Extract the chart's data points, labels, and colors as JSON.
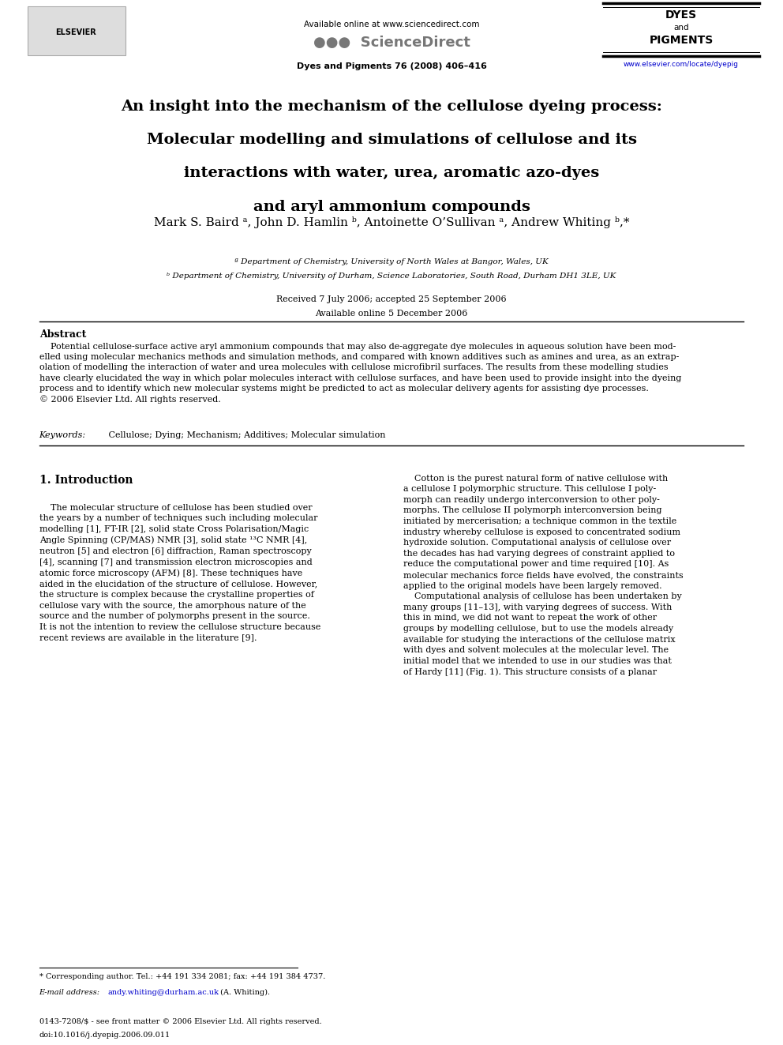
{
  "bg_color": "#ffffff",
  "header_available_online": "Available online at www.sciencedirect.com",
  "header_journal": "Dyes and Pigments 76 (2008) 406–416",
  "title_line1": "An insight into the mechanism of the cellulose dyeing process:",
  "title_line2": "Molecular modelling and simulations of cellulose and its",
  "title_line3": "interactions with water, urea, aromatic azo-dyes",
  "title_line4": "and aryl ammonium compounds",
  "author_line": "Mark S. Baird ᵃ, John D. Hamlin ᵇ, Antoinette O’Sullivan ᵃ, Andrew Whiting ᵇ,*",
  "affil_a": "ª Department of Chemistry, University of North Wales at Bangor, Wales, UK",
  "affil_b": "ᵇ Department of Chemistry, University of Durham, Science Laboratories, South Road, Durham DH1 3LE, UK",
  "received": "Received 7 July 2006; accepted 25 September 2006",
  "available": "Available online 5 December 2006",
  "abstract_title": "Abstract",
  "abstract_text": "    Potential cellulose-surface active aryl ammonium compounds that may also de-aggregate dye molecules in aqueous solution have been mod-\nelled using molecular mechanics methods and simulation methods, and compared with known additives such as amines and urea, as an extrap-\nolation of modelling the interaction of water and urea molecules with cellulose microfibril surfaces. The results from these modelling studies\nhave clearly elucidated the way in which polar molecules interact with cellulose surfaces, and have been used to provide insight into the dyeing\nprocess and to identify which new molecular systems might be predicted to act as molecular delivery agents for assisting dye processes.\n© 2006 Elsevier Ltd. All rights reserved.",
  "keywords_italic": "Keywords:",
  "keywords_text": " Cellulose; Dying; Mechanism; Additives; Molecular simulation",
  "section1_title": "1. Introduction",
  "intro_left": "    The molecular structure of cellulose has been studied over\nthe years by a number of techniques such including molecular\nmodelling [1], FT-IR [2], solid state Cross Polarisation/Magic\nAngle Spinning (CP/MAS) NMR [3], solid state ¹³C NMR [4],\nneutron [5] and electron [6] diffraction, Raman spectroscopy\n[4], scanning [7] and transmission electron microscopies and\natomic force microscopy (AFM) [8]. These techniques have\naided in the elucidation of the structure of cellulose. However,\nthe structure is complex because the crystalline properties of\ncellulose vary with the source, the amorphous nature of the\nsource and the number of polymorphs present in the source.\nIt is not the intention to review the cellulose structure because\nrecent reviews are available in the literature [9].",
  "intro_right": "    Cotton is the purest natural form of native cellulose with\na cellulose I polymorphic structure. This cellulose I poly-\nmorph can readily undergo interconversion to other poly-\nmorphs. The cellulose II polymorph interconversion being\ninitiated by mercerisation; a technique common in the textile\nindustry whereby cellulose is exposed to concentrated sodium\nhydroxide solution. Computational analysis of cellulose over\nthe decades has had varying degrees of constraint applied to\nreduce the computational power and time required [10]. As\nmolecular mechanics force fields have evolved, the constraints\napplied to the original models have been largely removed.\n    Computational analysis of cellulose has been undertaken by\nmany groups [11–13], with varying degrees of success. With\nthis in mind, we did not want to repeat the work of other\ngroups by modelling cellulose, but to use the models already\navailable for studying the interactions of the cellulose matrix\nwith dyes and solvent molecules at the molecular level. The\ninitial model that we intended to use in our studies was that\nof Hardy [11] (Fig. 1). This structure consists of a planar",
  "footnote_star": "* Corresponding author. Tel.: +44 191 334 2081; fax: +44 191 384 4737.",
  "footnote_email_label": "E-mail address: ",
  "footnote_email": "andy.whiting@durham.ac.uk",
  "footnote_email_who": " (A. Whiting).",
  "footnote_bottom1": "0143-7208/$ - see front matter © 2006 Elsevier Ltd. All rights reserved.",
  "footnote_bottom2": "doi:10.1016/j.dyepig.2006.09.011",
  "url_color": "#0000cc",
  "dyes_top_color": "#000000",
  "sciencedirect_color": "#777777"
}
